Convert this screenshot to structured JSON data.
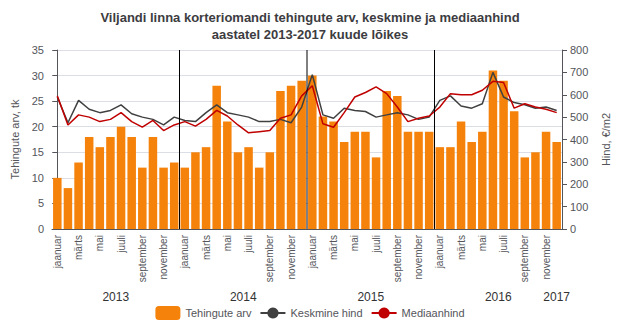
{
  "chart_data": {
    "type": "bar",
    "title": "Viljandi linna korteriomandi tehingute arv, keskmine ja mediaanhind\naastatel 2013-2017 kuude lõikes",
    "ylabel": "Tehingute arv, tk",
    "y2label": "Hind, €/m2",
    "ylim": [
      0,
      35
    ],
    "yticks": [
      0,
      5,
      10,
      15,
      20,
      25,
      30,
      35
    ],
    "y2lim": [
      0,
      800
    ],
    "y2ticks": [
      0,
      100,
      200,
      300,
      400,
      500,
      600,
      700,
      800
    ],
    "grid": true,
    "legend": "bottom",
    "categories": [
      "jaanuar",
      null,
      "märts",
      null,
      "mai",
      null,
      "juuli",
      null,
      "september",
      null,
      "november",
      null,
      "jaanuar",
      null,
      "märts",
      null,
      "mai",
      null,
      "juuli",
      null,
      "september",
      null,
      "november",
      null,
      "jaanuar",
      null,
      "märts",
      null,
      "mai",
      null,
      "juuli",
      null,
      "september",
      null,
      "november",
      null,
      "jaanuar",
      null,
      "märts",
      null,
      "mai",
      null,
      "juuli",
      null,
      "september",
      null,
      "november",
      null
    ],
    "series": [
      {
        "name": "Tehingute arv",
        "type": "bar",
        "color": "#F5820A",
        "values": [
          10,
          8,
          13,
          18,
          16,
          18,
          20,
          18,
          12,
          18,
          12,
          13,
          12,
          15,
          16,
          28,
          21,
          15,
          16,
          12,
          15,
          27,
          28,
          29,
          30,
          22,
          21,
          17,
          19,
          19,
          14,
          27,
          26,
          19,
          19,
          19,
          16,
          16,
          21,
          17,
          19,
          31,
          29,
          23,
          14,
          15,
          19,
          17
        ]
      },
      {
        "name": "Keskmine hind",
        "type": "line",
        "axis": "y2",
        "color": "#404040",
        "values": [
          590,
          475,
          575,
          535,
          520,
          530,
          555,
          515,
          500,
          490,
          465,
          500,
          485,
          480,
          520,
          555,
          520,
          510,
          500,
          480,
          480,
          490,
          475,
          545,
          690,
          510,
          495,
          540,
          530,
          525,
          500,
          510,
          520,
          510,
          490,
          500,
          575,
          595,
          550,
          540,
          560,
          700,
          590,
          565,
          555,
          540,
          545,
          530
        ]
      },
      {
        "name": "Mediaanhind",
        "type": "line",
        "axis": "y2",
        "color": "#C00000",
        "values": [
          595,
          465,
          510,
          500,
          480,
          490,
          520,
          480,
          455,
          485,
          440,
          465,
          480,
          460,
          490,
          530,
          505,
          465,
          430,
          435,
          440,
          495,
          510,
          595,
          640,
          470,
          455,
          520,
          590,
          610,
          635,
          605,
          545,
          480,
          495,
          505,
          545,
          605,
          600,
          600,
          620,
          660,
          655,
          540,
          560,
          545,
          535,
          520
        ]
      }
    ],
    "annotations": [
      {
        "text": "2013",
        "x": 5.5
      },
      {
        "text": "2014",
        "x": 17.5
      },
      {
        "text": "2015",
        "x": 29.5
      },
      {
        "text": "2016",
        "x": 41.5
      },
      {
        "text": "2017",
        "x": 47.0
      }
    ],
    "separators": [
      11.5,
      23.5,
      35.5
    ]
  }
}
